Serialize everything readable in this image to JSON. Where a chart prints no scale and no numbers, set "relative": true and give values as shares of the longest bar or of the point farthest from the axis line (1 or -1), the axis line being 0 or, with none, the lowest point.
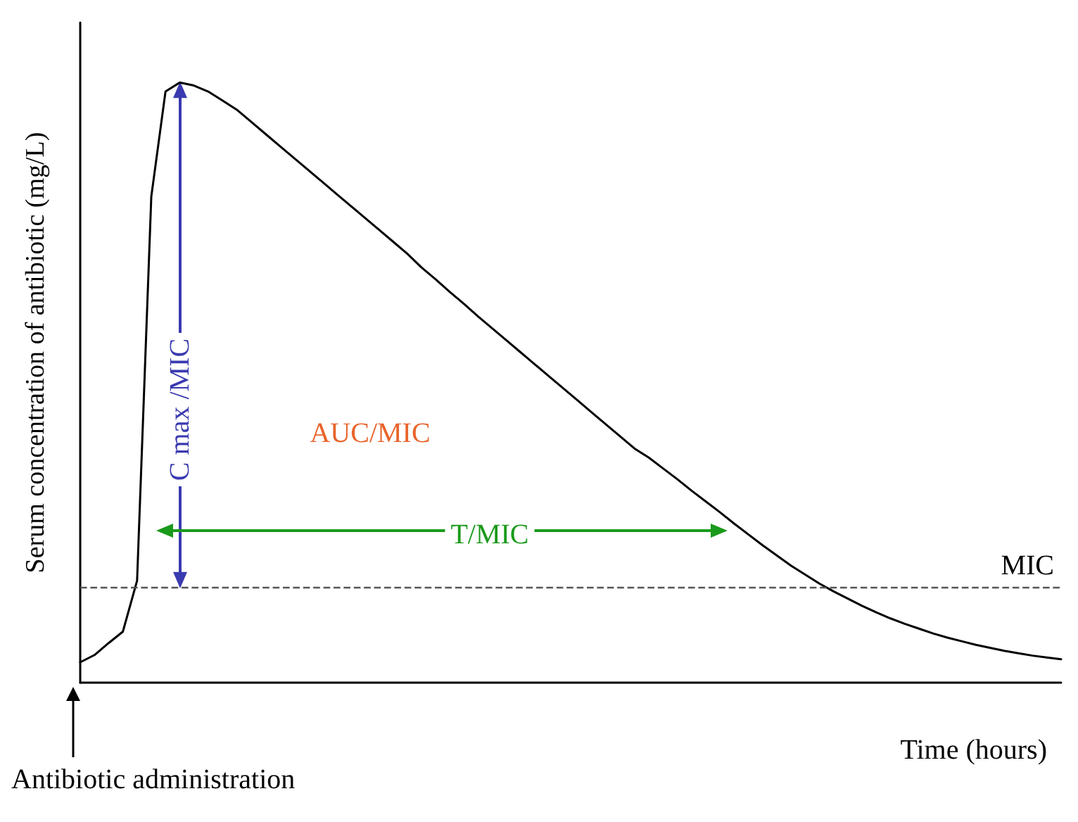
{
  "chart_data": {
    "type": "line",
    "relative": true,
    "xlabel": "Time (hours)",
    "ylabel": "Serum concentration of antibiotic (mg/L)",
    "grid": false,
    "marker": "none",
    "line_style": "solid",
    "categories": [
      null,
      null,
      null,
      null,
      null,
      null,
      null,
      null,
      null,
      null,
      null,
      null,
      null,
      null,
      null,
      null,
      null,
      null,
      null,
      null,
      null,
      null,
      null,
      null,
      null,
      null,
      null,
      null,
      null,
      null,
      null,
      null,
      null,
      null,
      null,
      null,
      null,
      null,
      null,
      null,
      null,
      null,
      null,
      null,
      null,
      null,
      null,
      null,
      null,
      null,
      null,
      null,
      null,
      null,
      null,
      null,
      null,
      null,
      null,
      null,
      null,
      null,
      null,
      null,
      null,
      null,
      null,
      null,
      null,
      null
    ],
    "series": [
      {
        "color": "#000000",
        "values": [
          0.034,
          0.046,
          0.066,
          0.085,
          0.17,
          0.81,
          0.985,
          1,
          0.995,
          0.985,
          0.97,
          0.955,
          0.935,
          0.915,
          0.895,
          0.875,
          0.855,
          0.835,
          0.815,
          0.795,
          0.775,
          0.755,
          0.735,
          0.715,
          0.692,
          0.672,
          0.651,
          0.631,
          0.61,
          0.59,
          0.57,
          0.55,
          0.53,
          0.51,
          0.49,
          0.47,
          0.45,
          0.43,
          0.41,
          0.39,
          0.375,
          0.357,
          0.339,
          0.32,
          0.302,
          0.284,
          0.265,
          0.247,
          0.229,
          0.212,
          0.195,
          0.18,
          0.165,
          0.152,
          0.14,
          0.128,
          0.117,
          0.107,
          0.098,
          0.09,
          0.082,
          0.075,
          0.069,
          0.063,
          0.058,
          0.053,
          0.049,
          0.045,
          0.042,
          0.039
        ]
      }
    ],
    "ref_lines": [
      {
        "axis": "y",
        "value": 0.156,
        "label": "MIC",
        "color": "#555555",
        "line_style": "dashed"
      }
    ],
    "annotations": [
      "AUC/MIC",
      "C max /MIC",
      "T/MIC",
      "Antibiotic administration"
    ]
  }
}
